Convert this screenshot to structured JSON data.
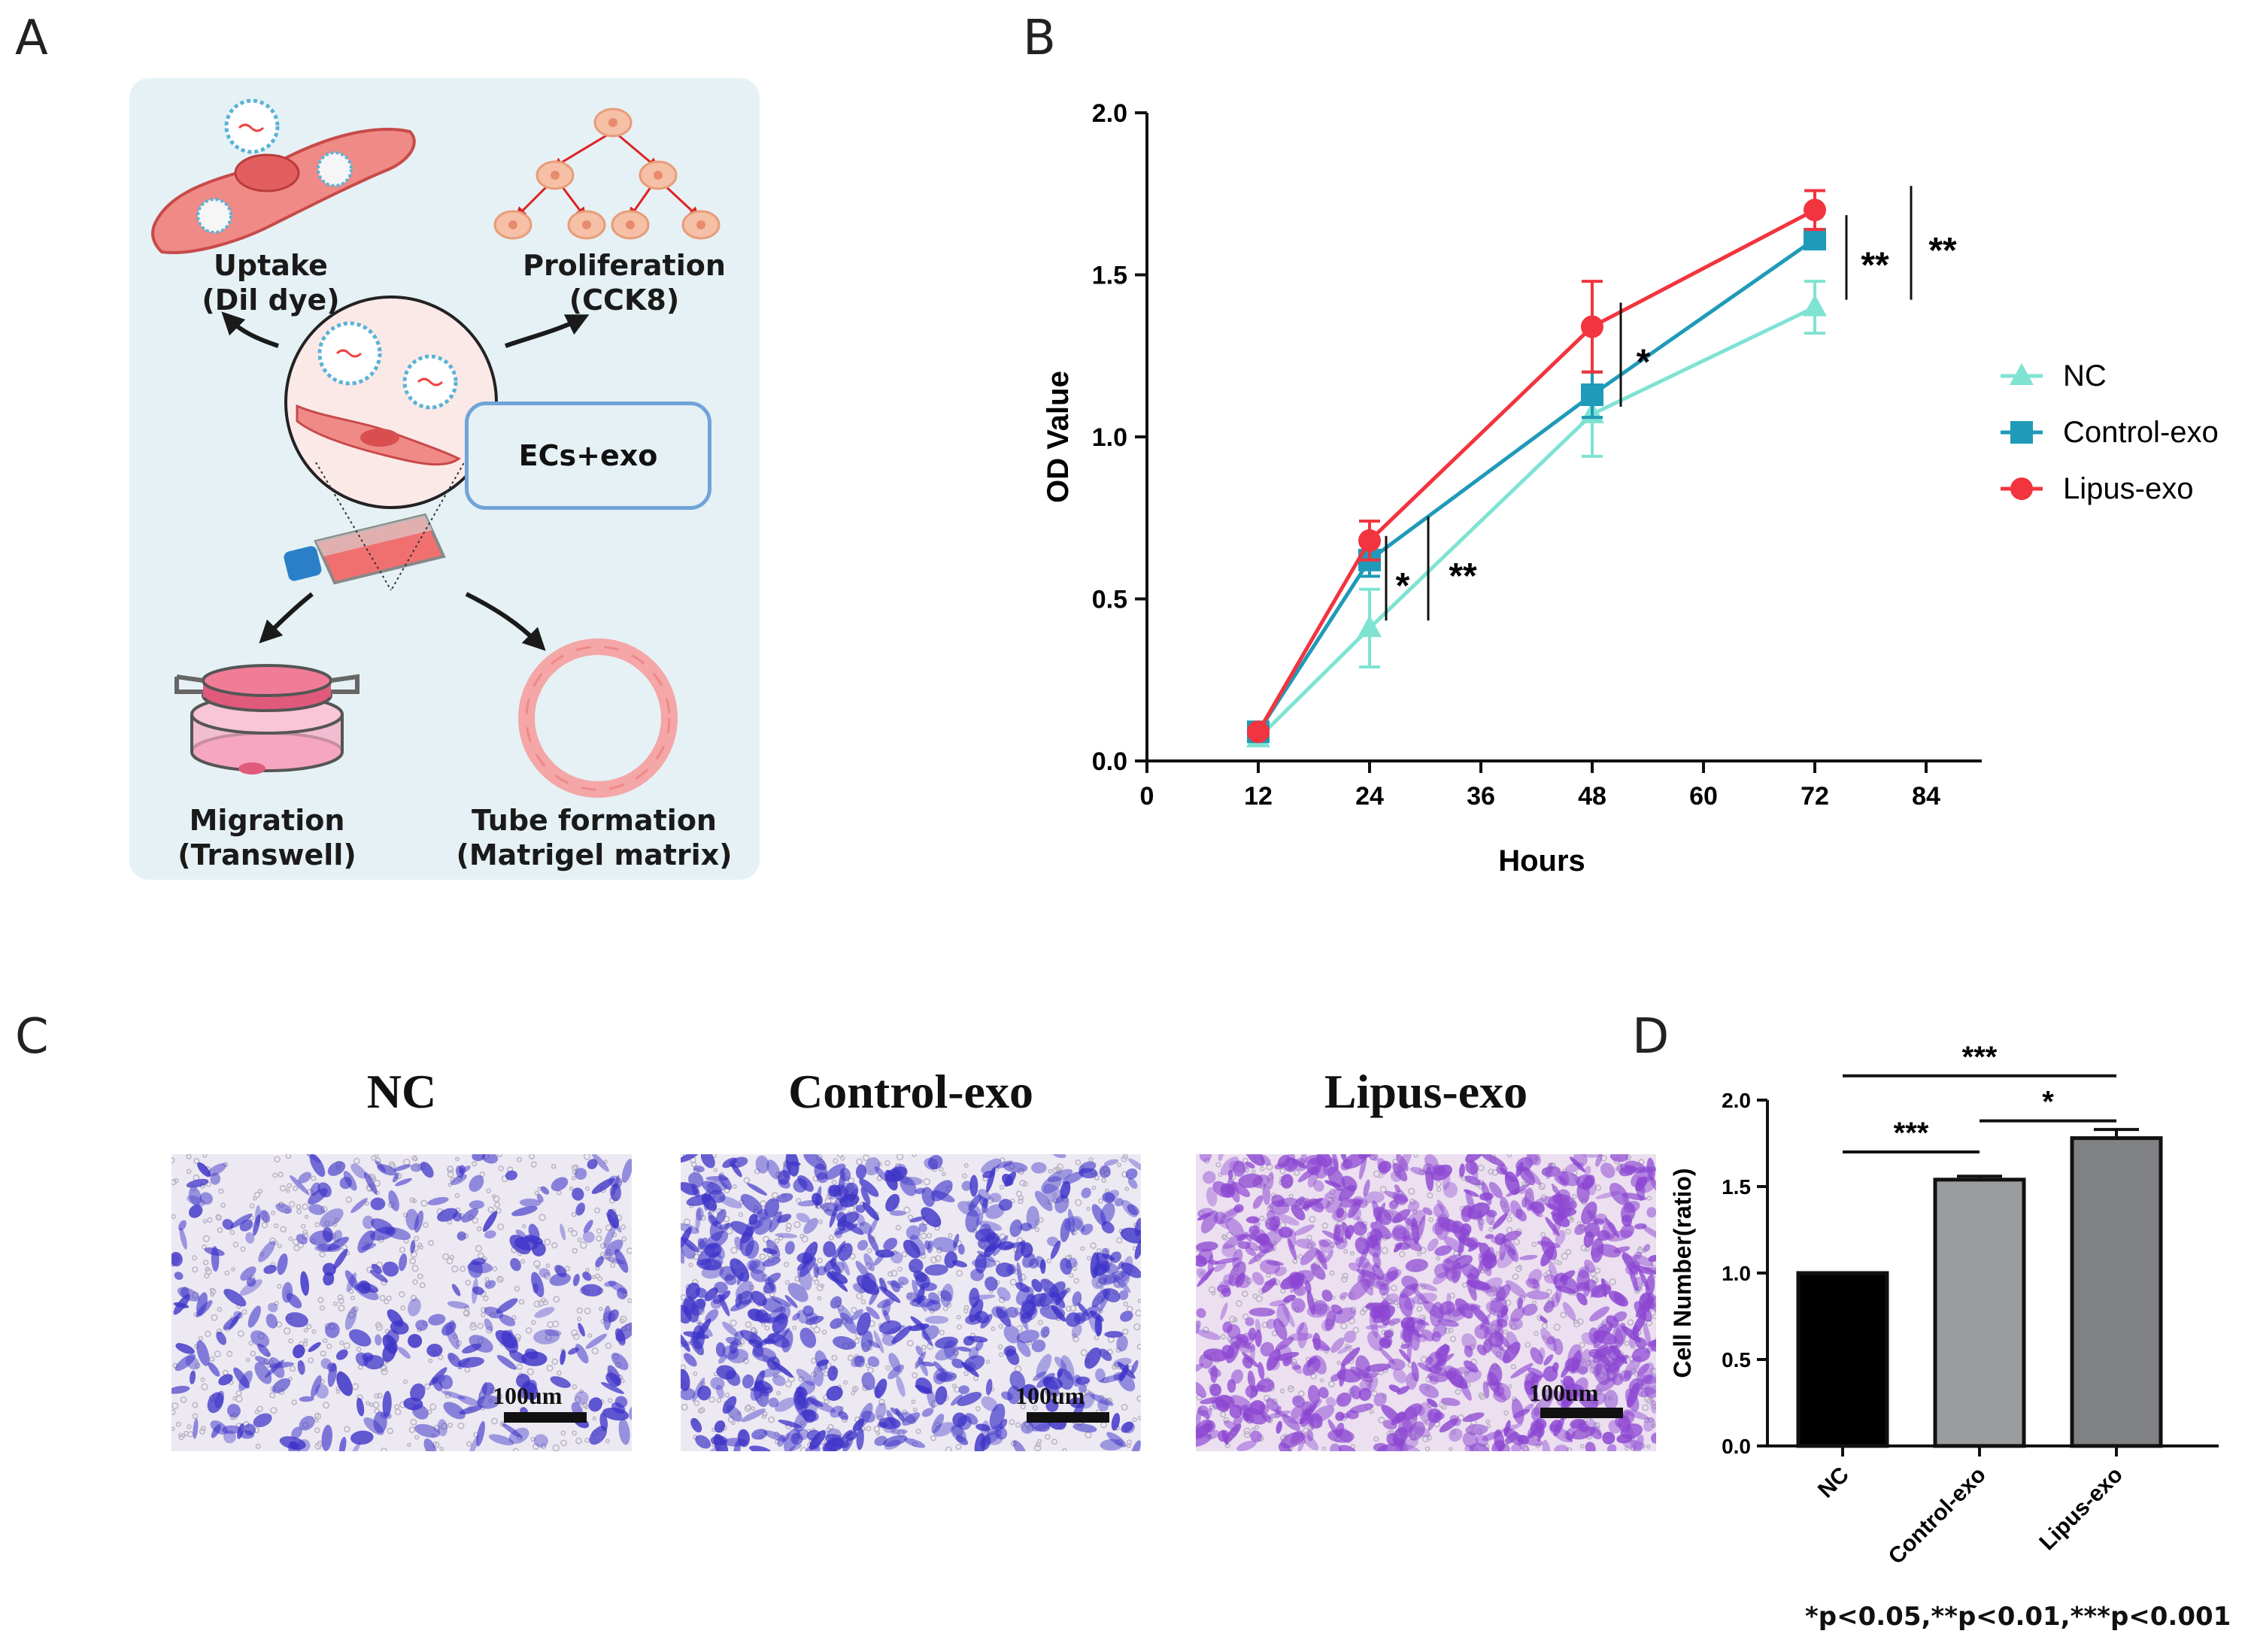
{
  "panel_letters": {
    "a": "A",
    "b": "B",
    "c": "C",
    "d": "D"
  },
  "schematic": {
    "uptake": [
      "Uptake",
      "(Dil dye)"
    ],
    "proliferation": [
      "Proliferation",
      "(CCK8)"
    ],
    "migration": [
      "Migration",
      "(Transwell)"
    ],
    "tube": [
      "Tube formation",
      "(Matrigel matrix)"
    ],
    "center_box": "ECs+exo"
  },
  "colors": {
    "nc": "#7fe3d2",
    "control": "#1f9ab8",
    "lipus": "#f2343e",
    "bar_nc": "#000000",
    "bar_control": "#9a9c9f",
    "bar_lipus": "#808184",
    "panel_bg": "#e5f1f5"
  },
  "chart_data": [
    {
      "type": "line",
      "xlabel": "Hours",
      "ylabel": "OD Value",
      "x_ticks": [
        "0",
        "12",
        "24",
        "36",
        "48",
        "60",
        "72",
        "84"
      ],
      "y_ticks": [
        "0.0",
        "0.5",
        "1.0",
        "1.5",
        "2.0"
      ],
      "xlim": [
        0,
        90
      ],
      "ylim": [
        0,
        2.0
      ],
      "x": [
        12,
        24,
        48,
        72
      ],
      "series": [
        {
          "name": "NC",
          "marker": "triangle",
          "values": [
            0.07,
            0.41,
            1.07,
            1.4
          ],
          "errors": [
            0.01,
            0.12,
            0.13,
            0.08
          ]
        },
        {
          "name": "Control-exo",
          "marker": "square",
          "values": [
            0.09,
            0.62,
            1.13,
            1.61
          ],
          "errors": [
            0.01,
            0.05,
            0.07,
            0.03
          ]
        },
        {
          "name": "Lipus-exo",
          "marker": "circle",
          "values": [
            0.09,
            0.68,
            1.34,
            1.7
          ],
          "errors": [
            0.01,
            0.06,
            0.14,
            0.06
          ]
        }
      ],
      "significance": [
        {
          "x": 24,
          "label": "*",
          "between": [
            0.41,
            0.62
          ]
        },
        {
          "x": 24,
          "label": "**",
          "between": [
            0.41,
            0.68
          ]
        },
        {
          "x": 48,
          "label": "*",
          "between": [
            1.07,
            1.34
          ]
        },
        {
          "x": 72,
          "label": "**",
          "between": [
            1.4,
            1.61
          ]
        },
        {
          "x": 72,
          "label": "**",
          "between": [
            1.4,
            1.7
          ]
        }
      ],
      "legend": [
        "NC",
        "Control-exo",
        "Lipus-exo"
      ]
    },
    {
      "type": "bar",
      "ylabel": "Cell Number(ratio)",
      "categories": [
        "NC",
        "Control-exo",
        "Lipus-exo"
      ],
      "values": [
        1.0,
        1.54,
        1.78
      ],
      "errors": [
        0.0,
        0.02,
        0.05
      ],
      "y_ticks": [
        "0.0",
        "0.5",
        "1.0",
        "1.5",
        "2.0"
      ],
      "ylim": [
        0,
        2.0
      ],
      "significance": [
        {
          "from": "NC",
          "to": "Control-exo",
          "label": "***"
        },
        {
          "from": "Control-exo",
          "to": "Lipus-exo",
          "label": "*"
        },
        {
          "from": "NC",
          "to": "Lipus-exo",
          "label": "***"
        }
      ]
    }
  ],
  "micrographs": [
    {
      "title": "NC",
      "scale": "100um",
      "density": 0.35
    },
    {
      "title": "Control-exo",
      "scale": "100um",
      "density": 0.7
    },
    {
      "title": "Lipus-exo",
      "scale": "100um",
      "density": 0.95
    }
  ],
  "pvalue_note": "*p<0.05,**p<0.01,***p<0.001"
}
